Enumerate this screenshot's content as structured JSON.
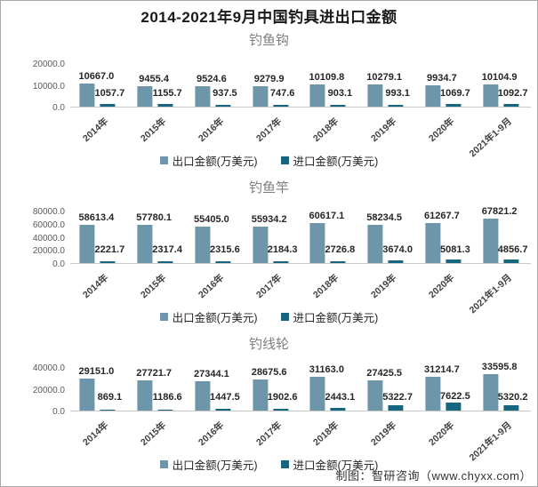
{
  "title": "2014-2021年9月中国钓具进出口金额",
  "footer": "制图：智研咨询（www.chyxx.com）",
  "colors": {
    "export": "#6e96ab",
    "import": "#17667f",
    "axis": "#c9c9c9"
  },
  "legend": {
    "export_label": "出口金额(万美元)",
    "import_label": "进口金额(万美元)"
  },
  "chart_data": [
    {
      "type": "bar",
      "title": "钓鱼钩",
      "categories": [
        "2014年",
        "2015年",
        "2016年",
        "2017年",
        "2018年",
        "2019年",
        "2020年",
        "2021年1-9月"
      ],
      "series": [
        {
          "name": "出口金额(万美元)",
          "values": [
            10667.0,
            9455.4,
            9524.6,
            9279.9,
            10109.8,
            10279.1,
            9934.7,
            10104.9
          ]
        },
        {
          "name": "进口金额(万美元)",
          "values": [
            1057.7,
            1155.7,
            937.5,
            747.6,
            903.1,
            993.1,
            1069.7,
            1092.7
          ]
        }
      ],
      "ylim": [
        0,
        20000
      ],
      "yticks": [
        "20000.0",
        "10000.0",
        "0.0"
      ],
      "legend_position": "bottom",
      "grid": false
    },
    {
      "type": "bar",
      "title": "钓鱼竿",
      "categories": [
        "2014年",
        "2015年",
        "2016年",
        "2017年",
        "2018年",
        "2019年",
        "2020年",
        "2021年1-9月"
      ],
      "series": [
        {
          "name": "出口金额(万美元)",
          "values": [
            58613.4,
            57780.1,
            55405.0,
            55934.2,
            60617.1,
            58234.5,
            61267.7,
            67821.2
          ]
        },
        {
          "name": "进口金额(万美元)",
          "values": [
            2221.7,
            2317.4,
            2315.6,
            2184.3,
            2726.8,
            3674.0,
            5081.3,
            4856.7
          ]
        }
      ],
      "ylim": [
        0,
        80000
      ],
      "yticks": [
        "80000.0",
        "60000.0",
        "40000.0",
        "20000.0",
        "0.0"
      ],
      "legend_position": "bottom",
      "grid": false
    },
    {
      "type": "bar",
      "title": "钓线轮",
      "categories": [
        "2014年",
        "2015年",
        "2016年",
        "2017年",
        "2018年",
        "2019年",
        "2020年",
        "2021年1-9月"
      ],
      "series": [
        {
          "name": "出口金额(万美元)",
          "values": [
            29151.0,
            27721.7,
            27344.1,
            28675.6,
            31163.0,
            27425.5,
            31214.7,
            33595.8
          ]
        },
        {
          "name": "进口金额(万美元)",
          "values": [
            869.1,
            1186.6,
            1447.5,
            1902.6,
            2443.1,
            5322.7,
            7622.5,
            5320.2
          ]
        }
      ],
      "ylim": [
        0,
        40000
      ],
      "yticks": [
        "40000.0",
        "20000.0",
        "0.0"
      ],
      "legend_position": "bottom",
      "grid": false
    }
  ]
}
